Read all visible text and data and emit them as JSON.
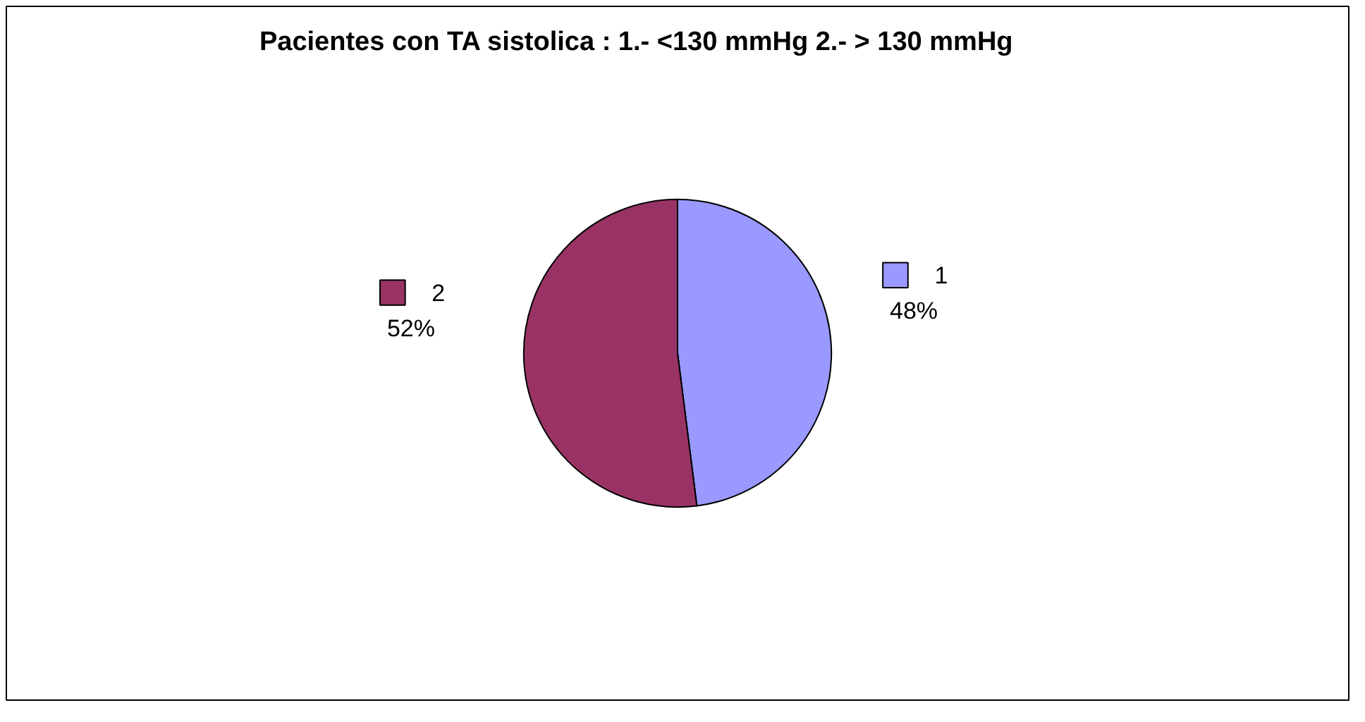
{
  "chart_data": {
    "type": "pie",
    "title": "Pacientes con TA sistolica :  1.- <130 mmHg           2.- > 130 mmHg",
    "categories": [
      "1",
      "2"
    ],
    "values": [
      48,
      52
    ],
    "colors": [
      "#9999ff",
      "#993366"
    ],
    "value_labels": [
      "48%",
      "52%"
    ],
    "legend": "right"
  }
}
